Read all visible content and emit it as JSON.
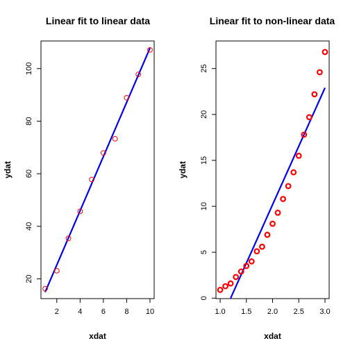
{
  "chart_data": [
    {
      "type": "scatter",
      "title": "Linear fit to linear data",
      "xlabel": "xdat",
      "ylabel": "ydat",
      "xlim": [
        0.64,
        10.36
      ],
      "ylim": [
        12.5,
        110.5
      ],
      "xticks": [
        2,
        4,
        6,
        8,
        10
      ],
      "yticks": [
        20,
        40,
        60,
        80,
        100
      ],
      "x": [
        1,
        2,
        3,
        4,
        5,
        6,
        7,
        8,
        9,
        10
      ],
      "y": [
        16.3,
        23.1,
        35.4,
        45.7,
        57.8,
        67.9,
        73.3,
        88.9,
        97.8,
        107.1
      ],
      "point_color": "#ff0000",
      "point_style": "thin",
      "fit_line": {
        "x": [
          1,
          10
        ],
        "y": [
          15.0,
          107.8
        ],
        "color": "#0000ee"
      }
    },
    {
      "type": "scatter",
      "title": "Linear fit to non-linear data",
      "xlabel": "xdat",
      "ylabel": "ydat",
      "xlim": [
        0.92,
        3.08
      ],
      "ylim": [
        -0.05,
        28.0
      ],
      "xticks": [
        "1.0",
        "1.5",
        "2.0",
        "2.5",
        "3.0"
      ],
      "yticks": [
        0,
        5,
        10,
        15,
        20,
        25
      ],
      "x": [
        1.0,
        1.1,
        1.2,
        1.3,
        1.4,
        1.5,
        1.6,
        1.7,
        1.8,
        1.9,
        2.0,
        2.1,
        2.2,
        2.3,
        2.4,
        2.5,
        2.6,
        2.7,
        2.8,
        2.9,
        3.0
      ],
      "y": [
        0.9,
        1.3,
        1.6,
        2.3,
        2.9,
        3.5,
        4.0,
        5.1,
        5.6,
        6.9,
        8.1,
        9.3,
        10.8,
        12.2,
        13.7,
        15.5,
        17.8,
        19.7,
        22.2,
        24.6,
        26.8
      ],
      "point_color": "#ff0000",
      "point_style": "thick",
      "fit_line": {
        "x": [
          1.2,
          3.0
        ],
        "y": [
          0.0,
          22.9
        ],
        "color": "#0000ee"
      }
    }
  ]
}
